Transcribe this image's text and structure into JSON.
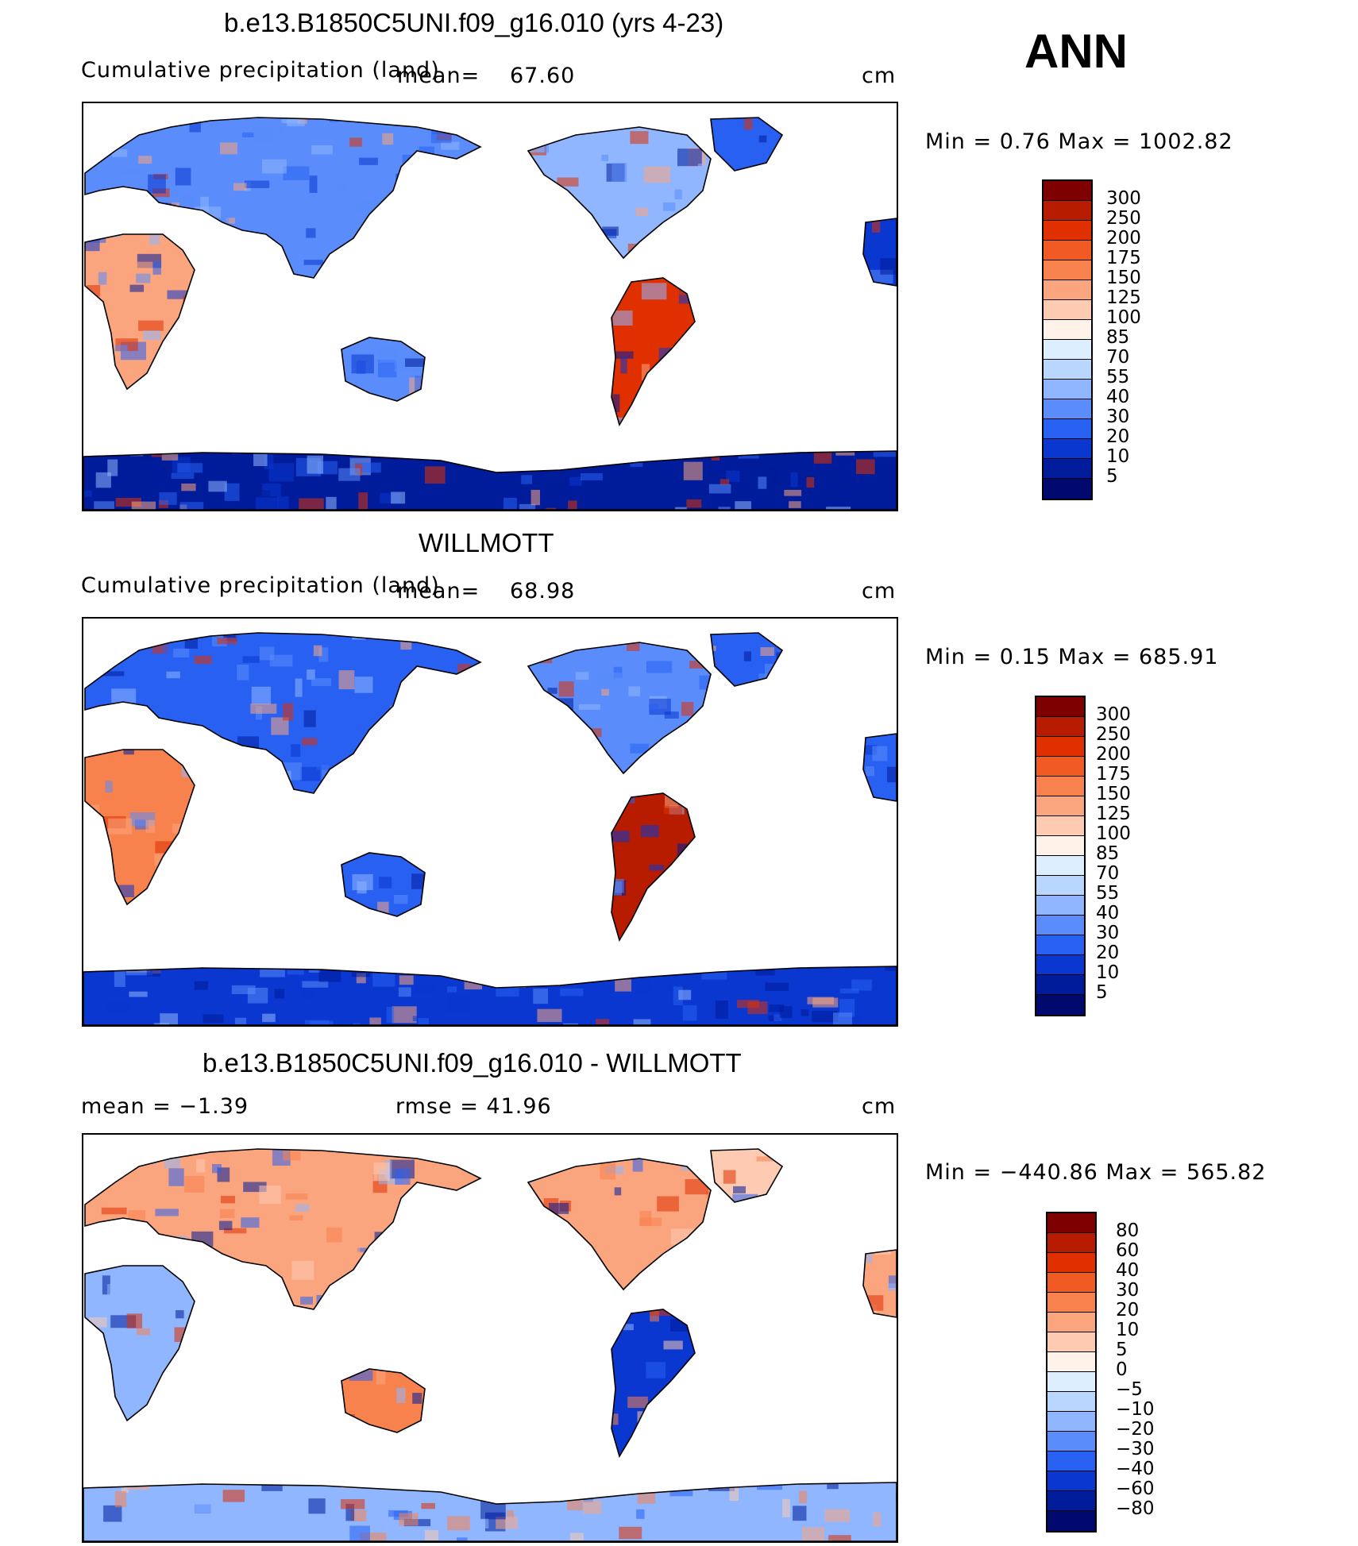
{
  "season": "ANN",
  "panels": [
    {
      "title": "b.e13.B1850C5UNI.f09_g16.010 (yrs 4-23)",
      "subtitle": "Cumulative precipitation (land)",
      "mean_label": "mean=",
      "mean_value": "67.60",
      "units": "cm",
      "minmax": "Min =    0.76  Max  =  1002.82",
      "scale": "abs",
      "levels": [
        "300",
        "250",
        "200",
        "175",
        "150",
        "125",
        "100",
        "85",
        "70",
        "55",
        "40",
        "30",
        "20",
        "10",
        "5"
      ]
    },
    {
      "title": "WILLMOTT",
      "subtitle": "Cumulative precipitation (land)",
      "mean_label": "mean=",
      "mean_value": "68.98",
      "units": "cm",
      "minmax": "Min =    0.15  Max  =  685.91",
      "scale": "abs",
      "levels": [
        "300",
        "250",
        "200",
        "175",
        "150",
        "125",
        "100",
        "85",
        "70",
        "55",
        "40",
        "30",
        "20",
        "10",
        "5"
      ]
    },
    {
      "title": "b.e13.B1850C5UNI.f09_g16.010 - WILLMOTT",
      "mean_text": "mean =   −1.39",
      "rmse_text": "rmse =   41.96",
      "units": "cm",
      "minmax": "Min = −440.86  Max  =  565.82",
      "scale": "diff",
      "levels": [
        "80",
        "60",
        "40",
        "30",
        "20",
        "10",
        "5",
        "0",
        "−5",
        "−10",
        "−20",
        "−30",
        "−40",
        "−60",
        "−80"
      ]
    }
  ],
  "colors": {
    "abs": [
      "#7f0000",
      "#b71c00",
      "#e03000",
      "#f25a23",
      "#f7824e",
      "#fba57f",
      "#fdcbb2",
      "#fff2e8",
      "#dceeff",
      "#b9d6ff",
      "#8fb6ff",
      "#5a8cfb",
      "#2860f2",
      "#0a37cf",
      "#001c9a",
      "#000a6e"
    ],
    "diff": [
      "#7f0000",
      "#b71c00",
      "#e03000",
      "#f25a23",
      "#f7824e",
      "#fba57f",
      "#fdcbb2",
      "#fff2e8",
      "#dceeff",
      "#b9d6ff",
      "#8fb6ff",
      "#5a8cfb",
      "#2860f2",
      "#0a37cf",
      "#001c9a",
      "#000a6e"
    ]
  }
}
